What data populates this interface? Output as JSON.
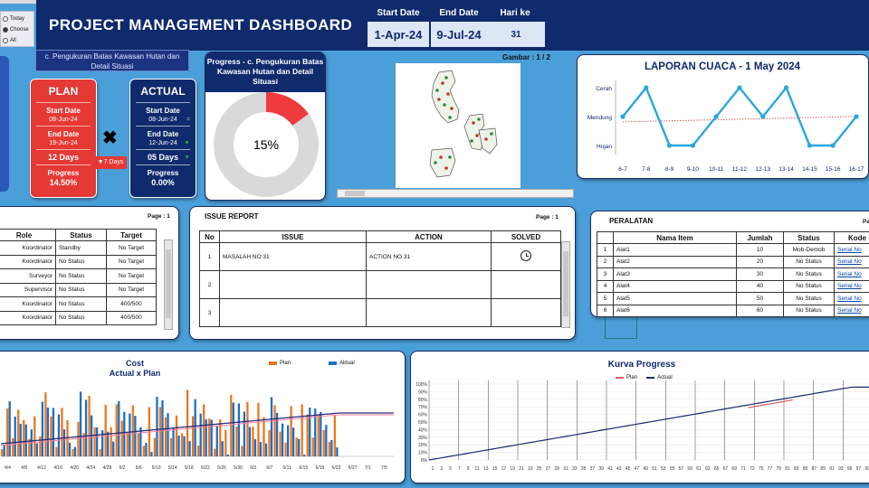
{
  "header": {
    "title": "PROJECT MANAGEMENT DASHBOARD",
    "start_label": "Start Date",
    "start_value": "1-Apr-24",
    "end_label": "End Date",
    "end_value": "9-Jul-24",
    "hari_label": "Hari ke",
    "hari_value": "31"
  },
  "filter": {
    "options": [
      "Today",
      "Choose",
      "All"
    ],
    "selected": 1
  },
  "activity_title": "c. Pengukuran Batas Kawasan Hutan dan Detail Situasi",
  "plan": {
    "title": "PLAN",
    "start_label": "Start Date",
    "start_value": "08-Jun-24",
    "end_label": "End Date",
    "end_value": "19-Jun-24",
    "duration": "12 Days",
    "progress_label": "Progress",
    "progress_value": "14.50%"
  },
  "actual": {
    "title": "ACTUAL",
    "start_label": "Start Date",
    "start_value": "08-Jun-24",
    "end_label": "End Date",
    "end_value": "12-Jun-24",
    "duration": "05 Days",
    "progress_label": "Progress",
    "progress_value": "0.00%"
  },
  "diff_days": "▼7 Days",
  "donut": {
    "title": "Progress - c. Pengukuran Batas Kawasan Hutan dan Detail Situasi",
    "percent_label": "15%",
    "fraction": 0.15,
    "fill_color": "#ef3b3b",
    "rest_color": "#d9d9d9"
  },
  "gambar": "Gambar : 1 / 2",
  "weather": {
    "title": "LAPORAN CUACA - 1 May 2024",
    "levels": [
      "Cerah",
      "Mendung",
      "Hujan"
    ],
    "categories": [
      "6-7",
      "7-8",
      "8-9",
      "9-10",
      "10-11",
      "11-12",
      "12-13",
      "13-14",
      "14-15",
      "15-16",
      "16-17"
    ],
    "values": [
      2,
      3,
      1,
      1,
      2,
      3,
      2,
      3,
      1,
      1,
      2
    ]
  },
  "roles": {
    "page": "Page : 1",
    "headers": [
      "Role",
      "Status",
      "Target"
    ],
    "rows": [
      [
        "Koordinator",
        "Standby",
        "No Target"
      ],
      [
        "Koordinator",
        "No Status",
        "No Target"
      ],
      [
        "Surveyor",
        "No Status",
        "No Target"
      ],
      [
        "Supervisor",
        "No Status",
        "No Target"
      ],
      [
        "Koordinator",
        "No Status",
        "400/500"
      ],
      [
        "Koordinator",
        "No Status",
        "400/500"
      ]
    ]
  },
  "issue": {
    "title": "ISSUE REPORT",
    "page": "Page : 1",
    "headers": [
      "No",
      "ISSUE",
      "ACTION",
      "SOLVED"
    ],
    "rows": [
      [
        "1",
        "MASALAH NO 31",
        "ACTION NO 31"
      ],
      [
        "2",
        "",
        ""
      ],
      [
        "3",
        "",
        ""
      ]
    ]
  },
  "peralatan": {
    "title": "PERALATAN",
    "page": "Pa",
    "headers": [
      "",
      "Nama Item",
      "Jumlah",
      "Status",
      "Kode"
    ],
    "rows": [
      [
        "1",
        "Alat1",
        "10",
        "Mob-Demob",
        "Serial No"
      ],
      [
        "2",
        "Alat2",
        "20",
        "No Status",
        "Serial No"
      ],
      [
        "3",
        "Alat3",
        "30",
        "No Status",
        "Serial No"
      ],
      [
        "4",
        "Alat4",
        "40",
        "No Status",
        "Serial No"
      ],
      [
        "5",
        "Alat5",
        "50",
        "No Status",
        "Serial No"
      ],
      [
        "6",
        "Alat6",
        "60",
        "No Status",
        "Serial No"
      ]
    ]
  },
  "cost": {
    "title": "Cost",
    "subtitle": "Actual x Plan",
    "legend_plan": "Plan",
    "legend_actual": "Aktual",
    "plan_color": "#e87722",
    "actual_color": "#1f6fbf",
    "line_color": "#2b2b7a",
    "x_labels": [
      "4/4",
      "4/8",
      "4/12",
      "4/16",
      "4/20",
      "4/24",
      "4/28",
      "5/2",
      "5/6",
      "5/10",
      "5/14",
      "5/18",
      "5/22",
      "5/26",
      "5/30",
      "6/3",
      "6/7",
      "6/11",
      "6/15",
      "6/19",
      "6/23",
      "6/27",
      "7/1",
      "7/5"
    ]
  },
  "kurva": {
    "title": "Kurva Progress",
    "legend_plan": "Plan",
    "legend_actual": "Actual",
    "plan_color": "#e05a6a",
    "actual_color": "#1a2a6e",
    "y_ticks": [
      "0%",
      "10%",
      "20%",
      "30%",
      "40%",
      "50%",
      "60%",
      "70%",
      "80%",
      "90%",
      "100%"
    ],
    "x_labels": [
      "1",
      "3",
      "5",
      "7",
      "9",
      "11",
      "13",
      "15",
      "17",
      "19",
      "21",
      "23",
      "25",
      "27",
      "29",
      "31",
      "33",
      "35",
      "37",
      "39",
      "41",
      "43",
      "45",
      "47",
      "49",
      "51",
      "53",
      "55",
      "57",
      "59",
      "61",
      "63",
      "65",
      "67",
      "69",
      "71",
      "73",
      "75",
      "77",
      "79",
      "81",
      "83",
      "85",
      "87",
      "89",
      "91",
      "93",
      "95",
      "97",
      "99"
    ]
  }
}
